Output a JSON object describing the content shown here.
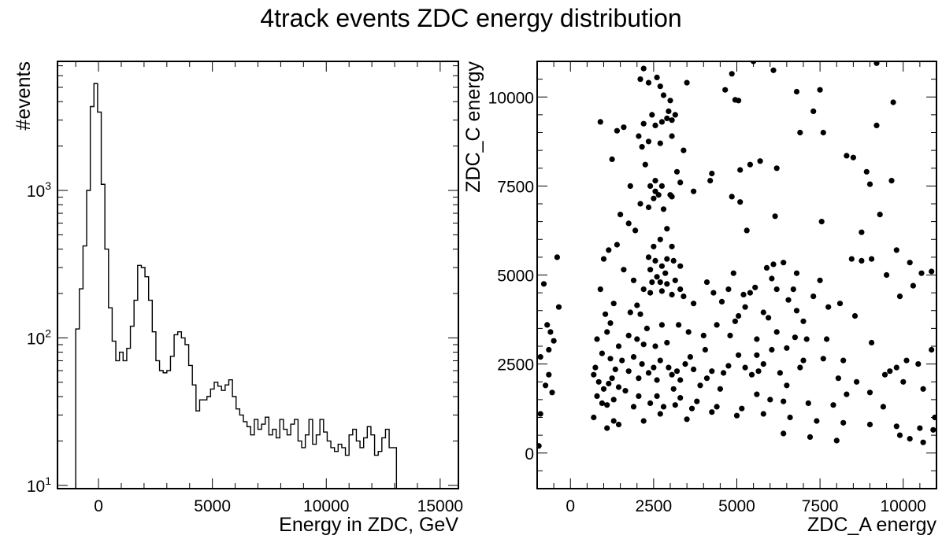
{
  "figure": {
    "title": "4track events ZDC energy distribution"
  },
  "chart_data": [
    {
      "type": "histogram",
      "xlabel": "Energy in ZDC, GeV",
      "ylabel": "#events",
      "xlim": [
        -1800,
        15800
      ],
      "ylim": [
        9.5,
        7500
      ],
      "yscale": "log",
      "grid": false,
      "histtype": "step",
      "x_ticks": [
        0,
        5000,
        10000,
        15000
      ],
      "x_tick_labels": [
        "0",
        "5000",
        "10000",
        "15000"
      ],
      "y_ticks": [
        10,
        100,
        1000
      ],
      "y_tick_labels": [
        "10",
        "10",
        "10"
      ],
      "y_tick_exponents": [
        "1",
        "2",
        "3"
      ],
      "bin_start": -1000,
      "bin_width": 160,
      "counts": [
        115,
        215,
        420,
        1000,
        3700,
        5300,
        3400,
        1100,
        400,
        160,
        95,
        70,
        80,
        70,
        85,
        120,
        180,
        310,
        300,
        260,
        180,
        110,
        70,
        60,
        58,
        60,
        75,
        105,
        110,
        100,
        90,
        65,
        48,
        32,
        38,
        38,
        40,
        45,
        50,
        47,
        44,
        48,
        52,
        40,
        33,
        30,
        27,
        25,
        22,
        28,
        24,
        26,
        29,
        22,
        24,
        21,
        28,
        24,
        22,
        26,
        28,
        20,
        18,
        22,
        28,
        19,
        22,
        28,
        23,
        20,
        18,
        17,
        19,
        18,
        16,
        22,
        24,
        20,
        18,
        21,
        25,
        22,
        16,
        17,
        21,
        24,
        18,
        18
      ],
      "color": "#000000"
    },
    {
      "type": "scatter",
      "xlabel": "ZDC_A energy",
      "ylabel": "ZDC_C energy",
      "xlim": [
        -1000,
        11000
      ],
      "ylim": [
        -1000,
        11000
      ],
      "grid": false,
      "x_ticks": [
        0,
        2500,
        5000,
        7500,
        10000
      ],
      "x_tick_labels": [
        "0",
        "2500",
        "5000",
        "7500",
        "10000"
      ],
      "y_ticks": [
        0,
        2500,
        5000,
        7500,
        10000
      ],
      "y_tick_labels": [
        "0",
        "2500",
        "5000",
        "7500",
        "10000"
      ],
      "marker_color": "#000000",
      "points": [
        [
          9200,
          10950
        ],
        [
          5500,
          11000
        ],
        [
          6100,
          10750
        ],
        [
          4850,
          10650
        ],
        [
          2350,
          10400
        ],
        [
          2700,
          10300
        ],
        [
          3500,
          10400
        ],
        [
          4650,
          10200
        ],
        [
          5050,
          9900
        ],
        [
          4950,
          9920
        ],
        [
          2100,
          10500
        ],
        [
          2200,
          10800
        ],
        [
          2600,
          10550
        ],
        [
          2800,
          10050
        ],
        [
          3000,
          9900
        ],
        [
          2950,
          9600
        ],
        [
          2900,
          9400
        ],
        [
          3050,
          9350
        ],
        [
          3150,
          9500
        ],
        [
          2750,
          9300
        ],
        [
          3050,
          8900
        ],
        [
          3400,
          8500
        ],
        [
          2450,
          9500
        ],
        [
          2550,
          9200
        ],
        [
          2200,
          9250
        ],
        [
          2350,
          8750
        ],
        [
          2050,
          8900
        ],
        [
          2150,
          8600
        ],
        [
          900,
          9300
        ],
        [
          1400,
          9050
        ],
        [
          1250,
          8250
        ],
        [
          1600,
          9150
        ],
        [
          2250,
          8100
        ],
        [
          2700,
          8700
        ],
        [
          2550,
          7650
        ],
        [
          2750,
          7500
        ],
        [
          3000,
          7250
        ],
        [
          3300,
          7600
        ],
        [
          3050,
          7200
        ],
        [
          2550,
          7350
        ],
        [
          2400,
          7500
        ],
        [
          2500,
          7150
        ],
        [
          2650,
          7250
        ],
        [
          2350,
          6900
        ],
        [
          2100,
          7000
        ],
        [
          2800,
          6850
        ],
        [
          3200,
          7900
        ],
        [
          3700,
          7350
        ],
        [
          1800,
          7500
        ],
        [
          1500,
          6700
        ],
        [
          1750,
          6450
        ],
        [
          1950,
          6250
        ],
        [
          5700,
          8200
        ],
        [
          5400,
          8100
        ],
        [
          5100,
          7950
        ],
        [
          4250,
          7850
        ],
        [
          4200,
          7650
        ],
        [
          5100,
          7050
        ],
        [
          6200,
          8000
        ],
        [
          5300,
          6250
        ],
        [
          4850,
          7200
        ],
        [
          6150,
          6650
        ],
        [
          6900,
          9000
        ],
        [
          7300,
          9600
        ],
        [
          7500,
          10200
        ],
        [
          6800,
          10150
        ],
        [
          7600,
          9000
        ],
        [
          8300,
          8350
        ],
        [
          8500,
          8300
        ],
        [
          8900,
          7900
        ],
        [
          9000,
          7550
        ],
        [
          9300,
          6700
        ],
        [
          9200,
          9200
        ],
        [
          9700,
          9850
        ],
        [
          9650,
          7650
        ],
        [
          7550,
          6500
        ],
        [
          8750,
          6200
        ],
        [
          2900,
          6300
        ],
        [
          2700,
          6000
        ],
        [
          2500,
          5800
        ],
        [
          3050,
          5800
        ],
        [
          2350,
          5500
        ],
        [
          2550,
          5400
        ],
        [
          2400,
          5150
        ],
        [
          2750,
          5250
        ],
        [
          2900,
          5450
        ],
        [
          2850,
          5050
        ],
        [
          3100,
          5400
        ],
        [
          3300,
          5250
        ],
        [
          2600,
          4950
        ],
        [
          2450,
          4800
        ],
        [
          2700,
          4800
        ],
        [
          2900,
          4750
        ],
        [
          2750,
          4550
        ],
        [
          3150,
          4850
        ],
        [
          3300,
          4600
        ],
        [
          3050,
          4450
        ],
        [
          2400,
          4500
        ],
        [
          2200,
          4600
        ],
        [
          1900,
          4850
        ],
        [
          1600,
          5150
        ],
        [
          2000,
          4150
        ],
        [
          1800,
          3950
        ],
        [
          1400,
          5850
        ],
        [
          1150,
          5700
        ],
        [
          1000,
          5450
        ],
        [
          2300,
          3500
        ],
        [
          2750,
          3600
        ],
        [
          3250,
          3600
        ],
        [
          3550,
          3400
        ],
        [
          4100,
          4800
        ],
        [
          4300,
          4500
        ],
        [
          4550,
          4250
        ],
        [
          4750,
          4600
        ],
        [
          4900,
          5050
        ],
        [
          5050,
          3850
        ],
        [
          4950,
          3700
        ],
        [
          5200,
          4450
        ],
        [
          5250,
          4100
        ],
        [
          5550,
          4650
        ],
        [
          5800,
          3950
        ],
        [
          5950,
          3800
        ],
        [
          5600,
          3200
        ],
        [
          6100,
          5300
        ],
        [
          6400,
          5350
        ],
        [
          6200,
          4600
        ],
        [
          6050,
          4900
        ],
        [
          6800,
          5050
        ],
        [
          6550,
          4300
        ],
        [
          7500,
          4850
        ],
        [
          7300,
          4400
        ],
        [
          7750,
          4100
        ],
        [
          8100,
          4200
        ],
        [
          8450,
          5450
        ],
        [
          8750,
          5400
        ],
        [
          9050,
          5450
        ],
        [
          9500,
          5000
        ],
        [
          9800,
          5700
        ],
        [
          10200,
          5350
        ],
        [
          10550,
          5050
        ],
        [
          10850,
          5100
        ],
        [
          9900,
          4400
        ],
        [
          8550,
          3850
        ],
        [
          10300,
          4700
        ],
        [
          9450,
          2200
        ],
        [
          9600,
          2300
        ],
        [
          9050,
          3100
        ],
        [
          10100,
          2600
        ],
        [
          10450,
          2500
        ],
        [
          10850,
          2900
        ],
        [
          9000,
          1700
        ],
        [
          8300,
          1650
        ],
        [
          8050,
          2100
        ],
        [
          7600,
          2650
        ],
        [
          7700,
          3200
        ],
        [
          6900,
          2400
        ],
        [
          6750,
          3250
        ],
        [
          6500,
          2950
        ],
        [
          6300,
          2250
        ],
        [
          5650,
          2300
        ],
        [
          5800,
          2500
        ],
        [
          5450,
          2200
        ],
        [
          5250,
          2400
        ],
        [
          5050,
          2750
        ],
        [
          4750,
          2450
        ],
        [
          4600,
          2250
        ],
        [
          4250,
          2300
        ],
        [
          4050,
          2900
        ],
        [
          4100,
          2100
        ],
        [
          3700,
          2350
        ],
        [
          3600,
          2700
        ],
        [
          3450,
          2500
        ],
        [
          3200,
          2300
        ],
        [
          2950,
          2400
        ],
        [
          2700,
          2600
        ],
        [
          2500,
          2400
        ],
        [
          2350,
          2250
        ],
        [
          2150,
          2500
        ],
        [
          2050,
          2100
        ],
        [
          1900,
          2700
        ],
        [
          1750,
          2300
        ],
        [
          1550,
          2600
        ],
        [
          1350,
          2350
        ],
        [
          1200,
          2650
        ],
        [
          2900,
          3100
        ],
        [
          2550,
          3000
        ],
        [
          3050,
          2200
        ],
        [
          3300,
          2050
        ],
        [
          2600,
          2050
        ],
        [
          2200,
          3050
        ],
        [
          2000,
          3200
        ],
        [
          1750,
          3300
        ],
        [
          1450,
          3000
        ],
        [
          1100,
          3400
        ],
        [
          1200,
          3650
        ],
        [
          1900,
          1300
        ],
        [
          2600,
          1600
        ],
        [
          3300,
          1550
        ],
        [
          3800,
          1450
        ],
        [
          4400,
          1300
        ],
        [
          5150,
          1250
        ],
        [
          5600,
          1650
        ],
        [
          6050,
          2900
        ],
        [
          6400,
          1450
        ],
        [
          7150,
          1400
        ],
        [
          7900,
          1350
        ],
        [
          8600,
          2000
        ],
        [
          9400,
          1300
        ],
        [
          10600,
          1800
        ],
        [
          10950,
          1000
        ],
        [
          700,
          1000
        ],
        [
          1100,
          700
        ],
        [
          1450,
          800
        ],
        [
          1300,
          900
        ],
        [
          2200,
          900
        ],
        [
          2700,
          1100
        ],
        [
          3500,
          950
        ],
        [
          6500,
          1900
        ],
        [
          7000,
          2600
        ],
        [
          9800,
          2400
        ],
        [
          10000,
          2000
        ],
        [
          5900,
          5200
        ],
        [
          6700,
          4600
        ],
        [
          6800,
          4000
        ],
        [
          7000,
          3700
        ],
        [
          8200,
          2600
        ],
        [
          6000,
          1500
        ],
        [
          4500,
          1800
        ],
        [
          3900,
          1900
        ],
        [
          3100,
          1800
        ],
        [
          4000,
          3300
        ],
        [
          4800,
          3300
        ],
        [
          5600,
          2750
        ],
        [
          7100,
          3200
        ],
        [
          6200,
          3400
        ],
        [
          5400,
          4500
        ],
        [
          4400,
          3600
        ],
        [
          3700,
          4200
        ],
        [
          3400,
          4400
        ],
        [
          2100,
          3900
        ],
        [
          1300,
          4200
        ],
        [
          900,
          4600
        ],
        [
          1050,
          3900
        ],
        [
          800,
          3200
        ],
        [
          950,
          2800
        ],
        [
          750,
          2400
        ],
        [
          850,
          2000
        ],
        [
          1000,
          1800
        ],
        [
          800,
          1600
        ],
        [
          700,
          2200
        ],
        [
          1250,
          2100
        ],
        [
          1150,
          1950
        ],
        [
          1450,
          1850
        ],
        [
          950,
          1400
        ],
        [
          1100,
          1350
        ],
        [
          1300,
          1500
        ],
        [
          1650,
          1750
        ],
        [
          2050,
          1600
        ],
        [
          2400,
          1400
        ],
        [
          2800,
          1300
        ],
        [
          3150,
          1350
        ],
        [
          3650,
          1250
        ],
        [
          4250,
          1150
        ],
        [
          5000,
          1050
        ],
        [
          5800,
          1100
        ],
        [
          6600,
          1000
        ],
        [
          7400,
          900
        ],
        [
          8200,
          850
        ],
        [
          9000,
          800
        ],
        [
          9800,
          750
        ],
        [
          10500,
          700
        ],
        [
          10900,
          650
        ],
        [
          -800,
          4750
        ],
        [
          -900,
          2700
        ],
        [
          -700,
          3600
        ],
        [
          -650,
          2200
        ],
        [
          -750,
          1900
        ],
        [
          -900,
          1100
        ],
        [
          -950,
          200
        ],
        [
          -600,
          3400
        ],
        [
          -500,
          3150
        ],
        [
          -650,
          2900
        ],
        [
          -550,
          1700
        ],
        [
          -400,
          5500
        ],
        [
          -350,
          4100
        ],
        [
          9900,
          500
        ],
        [
          10200,
          400
        ],
        [
          10600,
          300
        ],
        [
          8000,
          350
        ],
        [
          7200,
          450
        ],
        [
          6400,
          550
        ]
      ]
    }
  ]
}
